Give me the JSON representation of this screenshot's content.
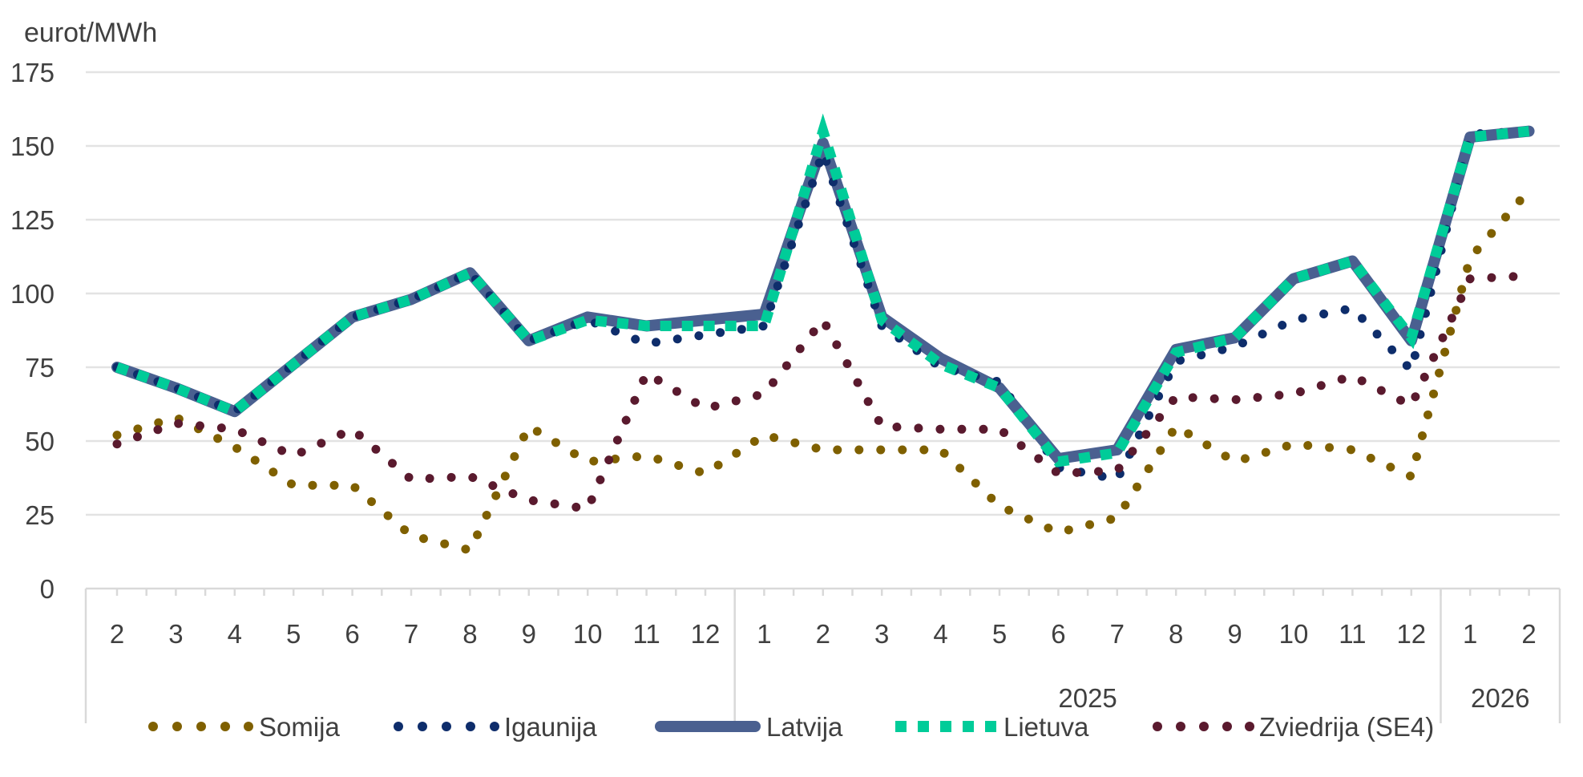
{
  "chart_data": {
    "type": "line",
    "title": "",
    "ylabel": "eurot/MWh",
    "xlabel": "",
    "ylim": [
      0,
      175
    ],
    "yticks": [
      "0",
      "25",
      "50",
      "75",
      "100",
      "125",
      "150",
      "175"
    ],
    "grid": true,
    "legend_position": "bottom",
    "x": [
      "2",
      "3",
      "4",
      "5",
      "6",
      "7",
      "8",
      "9",
      "10",
      "11",
      "12",
      "1",
      "2",
      "3",
      "4",
      "5",
      "6",
      "7",
      "8",
      "9",
      "10",
      "11",
      "12",
      "1",
      "2"
    ],
    "groups": [
      {
        "label": "",
        "count": 11
      },
      {
        "label": "2025",
        "count": 12
      },
      {
        "label": "2026",
        "count": 2
      }
    ],
    "series": [
      {
        "name": "Somija",
        "color": "#7F6000",
        "style": "round-dot",
        "values": [
          52,
          58,
          48,
          35,
          35,
          18,
          13,
          55,
          43,
          45,
          39,
          52,
          47,
          47,
          47,
          28,
          19,
          24,
          55,
          43,
          49,
          47,
          38,
          112,
          135
        ]
      },
      {
        "name": "Igaunija",
        "color": "#0E2D6B",
        "style": "round-dot",
        "values": [
          75,
          68,
          60,
          76,
          92,
          98,
          107,
          84,
          91,
          83,
          86,
          89,
          148,
          89,
          75,
          70,
          41,
          37,
          77,
          82,
          91,
          95,
          74,
          154,
          155
        ]
      },
      {
        "name": "Latvija",
        "color": "#4A6090",
        "style": "solid",
        "values": [
          75,
          68,
          60,
          76,
          92,
          98,
          107,
          84,
          92,
          89,
          91,
          93,
          151,
          92,
          78,
          68,
          44,
          47,
          81,
          85,
          105,
          111,
          84,
          153,
          155
        ]
      },
      {
        "name": "Lietuva",
        "color": "#00CC99",
        "style": "square-dash",
        "values": [
          75,
          68,
          60,
          76,
          92,
          98,
          107,
          84,
          91,
          89,
          89,
          89,
          155,
          91,
          76,
          68,
          43,
          46,
          80,
          85,
          105,
          111,
          85,
          153,
          155
        ]
      },
      {
        "name": "Zviedrija (SE4)",
        "color": "#5A1A2E",
        "style": "round-dot",
        "values": [
          49,
          56,
          54,
          45,
          54,
          37,
          38,
          30,
          27,
          73,
          61,
          66,
          91,
          55,
          54,
          54,
          39,
          40,
          65,
          64,
          66,
          72,
          62,
          105,
          106
        ]
      }
    ]
  }
}
